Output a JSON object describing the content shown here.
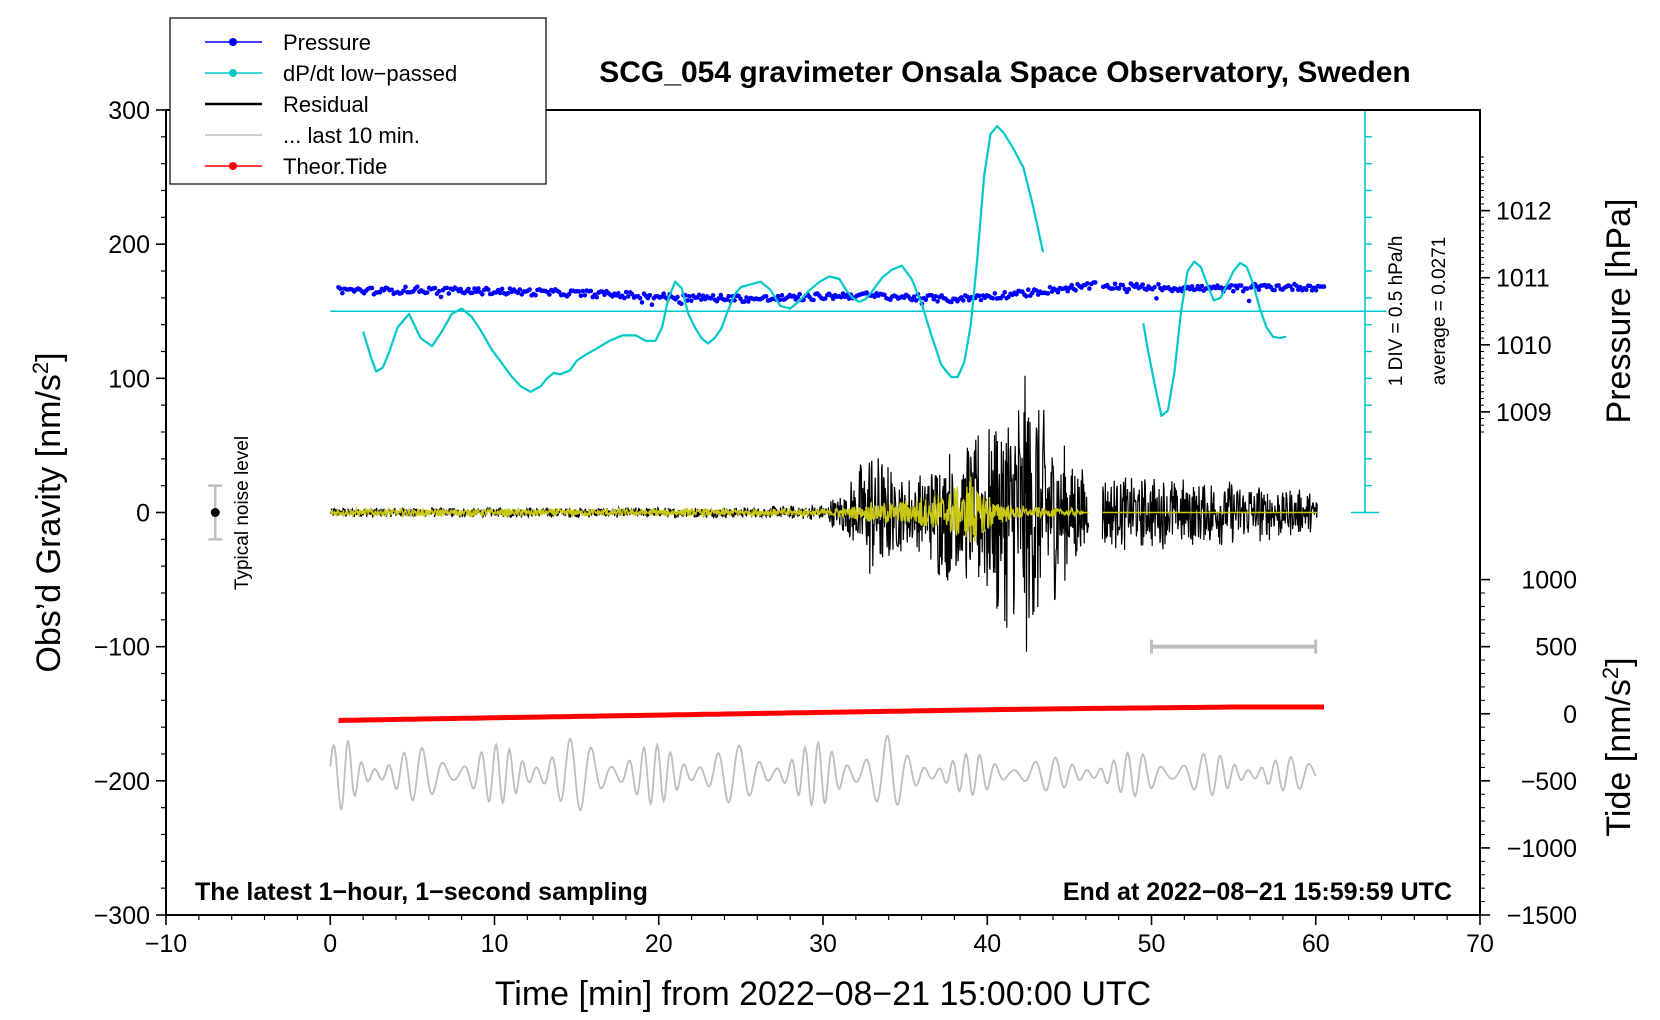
{
  "chart_data": {
    "type": "line",
    "title": "SCG_054 gravimeter Onsala Space Observatory, Sweden",
    "xlabel": "Time [min] from 2022−08−21 15:00:00 UTC",
    "ylabel": "Obs’d Gravity [nm/s",
    "ylabel_sup": "2",
    "ylabel_end": "]",
    "y2label": "Pressure [hPa]",
    "y3label": "Tide [nm/s",
    "y3label_sup": "2",
    "y3label_end": "]",
    "xlim": [
      -10,
      70
    ],
    "ylim": [
      -300,
      300
    ],
    "x_ticks": [
      -10,
      0,
      10,
      20,
      30,
      40,
      50,
      60,
      70
    ],
    "x_tick_labels": [
      "−10",
      "0",
      "10",
      "20",
      "30",
      "40",
      "50",
      "60",
      "70"
    ],
    "y_ticks": [
      -300,
      -200,
      -100,
      0,
      100,
      200,
      300
    ],
    "y_tick_labels": [
      "−300",
      "−200",
      "−100",
      "0",
      "100",
      "200",
      "300"
    ],
    "pressure_axis": {
      "ticks": [
        1009,
        1010,
        1011,
        1012
      ],
      "tick_labels": [
        "1009",
        "1010",
        "1011",
        "1012"
      ],
      "mapping": {
        "value_a": 1010.5,
        "gravity_a": 150,
        "value_b": 1012,
        "gravity_b": 225
      }
    },
    "tide_axis": {
      "ticks": [
        -1500,
        -1000,
        -500,
        0,
        500,
        1000
      ],
      "tick_labels": [
        "−1500",
        "−1000",
        "−500",
        "0",
        "500",
        "1000"
      ],
      "mapping": {
        "value_a": -1500,
        "gravity_a": -300,
        "value_b": 1000,
        "gravity_b": -50
      }
    },
    "legend": [
      {
        "label": "Pressure",
        "color": "#0000ff",
        "marker": true
      },
      {
        "label": "dP/dt low−passed",
        "color": "#00c8c8",
        "marker": true
      },
      {
        "label": "Residual",
        "color": "#000000",
        "marker": false
      },
      {
        "label": "... last 10 min.",
        "color": "#bebebe",
        "marker": false
      },
      {
        "label": "Theor.Tide",
        "color": "#ff0000",
        "marker": true
      }
    ],
    "annotations": {
      "bottom_left": "The latest 1−hour, 1−second sampling",
      "bottom_right": "End at 2022−08−21 15:59:59 UTC",
      "noise": "Typical noise level",
      "div": "1 DIV = 0.5 hPa/h",
      "avg": "average = 0.0271"
    },
    "noise_bar": {
      "x": -7,
      "y": 0,
      "err": 20
    },
    "last10_bar": {
      "x0": 50,
      "x1": 60,
      "y": -100
    },
    "dpdt_scale": {
      "x": 63,
      "y_bottom": 0,
      "y_top": 300,
      "div": 20,
      "baseline": 150
    },
    "series": [
      {
        "name": "Pressure",
        "color": "#0000ff",
        "x": [
          0.5,
          3,
          5,
          8,
          10,
          13,
          16,
          18,
          20,
          22,
          24,
          26,
          28,
          30,
          32,
          34,
          36,
          38,
          40,
          42,
          44,
          45.5,
          46.5,
          47,
          50,
          52,
          55,
          57,
          60,
          60.5
        ],
        "values": [
          166,
          165,
          166,
          165,
          165,
          164,
          163,
          162,
          161,
          160,
          160,
          159,
          160,
          161,
          162,
          161,
          160,
          159,
          161,
          163,
          166,
          168,
          169,
          169,
          168,
          167,
          167,
          168,
          168,
          168
        ],
        "gaps": [
          [
            46.6,
            47
          ]
        ]
      },
      {
        "name": "dP/dt low-passed",
        "color": "#00c8c8",
        "segments": [
          {
            "x": [
              2,
              2.5,
              2.8,
              3.2,
              3.6,
              4.1,
              4.8,
              5.5,
              6.2,
              6.8,
              7.4,
              8,
              8.6,
              9.2,
              9.8,
              10.4,
              11,
              11.6,
              12.2,
              12.8,
              13.2,
              13.6,
              14,
              14.6,
              15,
              15.6,
              16.2,
              17,
              17.8,
              18.6,
              19.2,
              19.8,
              20.2,
              20.6,
              21,
              21.4,
              21.8,
              22.2,
              22.6,
              23,
              23.4,
              23.8,
              24.2,
              24.6,
              25,
              25.6,
              26.2,
              26.8,
              27.4,
              28,
              28.6,
              29.2,
              29.8,
              30.4,
              31,
              31.4,
              31.8,
              32.2,
              32.6,
              33,
              33.6,
              34.2,
              34.8,
              35.4,
              36,
              36.6,
              37.2,
              37.8,
              38.2,
              38.6,
              39,
              39.4,
              39.8,
              40.2,
              40.6,
              41,
              41.6,
              42.2,
              42.8,
              43.4
            ],
            "values": [
              135,
              115,
              105,
              108,
              120,
              138,
              148,
              130,
              124,
              135,
              148,
              152,
              146,
              135,
              122,
              112,
              102,
              94,
              90,
              94,
              100,
              104,
              103,
              106,
              113,
              118,
              122,
              128,
              132,
              132,
              128,
              128,
              138,
              160,
              172,
              167,
              148,
              138,
              130,
              126,
              130,
              137,
              150,
              162,
              168,
              170,
              172,
              166,
              154,
              152,
              158,
              166,
              172,
              176,
              174,
              166,
              160,
              157,
              159,
              165,
              175,
              181,
              184,
              174,
              156,
              132,
              110,
              101,
              101,
              112,
              140,
              190,
              250,
              282,
              288,
              283,
              271,
              257,
              228,
              194
            ]
          },
          {
            "x": [
              49.5,
              49.8,
              50.2,
              50.6,
              51,
              51.4,
              51.8,
              52.2,
              52.6,
              53,
              53.4,
              53.8,
              54.2,
              54.6,
              55,
              55.4,
              55.8,
              56.2,
              56.6,
              57,
              57.4,
              57.8,
              58.2
            ],
            "values": [
              141,
              120,
              95,
              72,
              76,
              105,
              150,
              180,
              187,
              183,
              170,
              158,
              160,
              170,
              180,
              186,
              183,
              170,
              152,
              138,
              131,
              130,
              131
            ]
          }
        ]
      },
      {
        "name": "Residual",
        "color": "#000000",
        "x": [
          0,
          5,
          10,
          15,
          20,
          25,
          30,
          31.5,
          33,
          34,
          35,
          36,
          37,
          37.5,
          38,
          39,
          40,
          41,
          42,
          42.5,
          43,
          43.5,
          44,
          45,
          45.8,
          46.5,
          47,
          50,
          55,
          58,
          60
        ],
        "envelope": [
          4,
          4,
          4,
          4,
          4,
          4,
          6,
          20,
          55,
          40,
          28,
          30,
          50,
          55,
          45,
          60,
          70,
          90,
          105,
          110,
          100,
          85,
          70,
          45,
          40,
          0,
          30,
          28,
          25,
          20,
          15
        ],
        "gaps": [
          [
            46.2,
            47
          ]
        ]
      },
      {
        "name": "Residual low-passed",
        "color": "#c8c814",
        "x": [
          0,
          5,
          10,
          20,
          30,
          32,
          33,
          35,
          37,
          37.8,
          38.5,
          39,
          39.5,
          40,
          41,
          42,
          43,
          45.5,
          46
        ],
        "envelope": [
          3,
          3,
          3,
          3,
          3,
          5,
          8,
          10,
          15,
          20,
          22,
          30,
          24,
          15,
          8,
          5,
          4,
          3,
          0
        ],
        "gaps": [
          [
            46.2,
            47
          ]
        ]
      },
      {
        "name": "... last 10 min.",
        "color": "#bebebe",
        "x": [
          0,
          1,
          2,
          5,
          10,
          15,
          20,
          25,
          28,
          30,
          34,
          35,
          40,
          45,
          50,
          55,
          60
        ],
        "envelope": [
          20,
          30,
          18,
          20,
          22,
          28,
          22,
          22,
          20,
          25,
          30,
          18,
          15,
          12,
          18,
          15,
          12
        ],
        "center": -195
      },
      {
        "name": "Theor.Tide",
        "color": "#ff0000",
        "x": [
          0.5,
          10,
          20,
          30,
          40,
          46.5,
          47,
          55,
          60.5
        ],
        "values": [
          -155,
          -153,
          -151,
          -149,
          -147,
          -146,
          -146,
          -145,
          -145
        ],
        "gaps": [
          [
            46.6,
            47
          ]
        ]
      }
    ]
  }
}
